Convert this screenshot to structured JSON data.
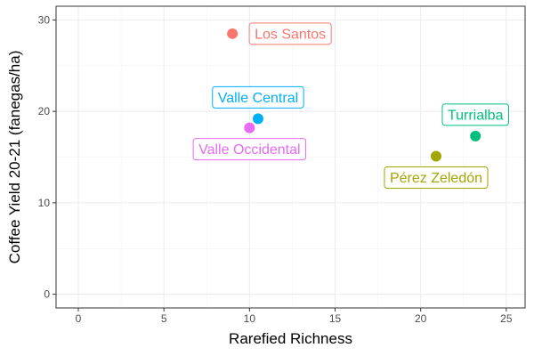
{
  "chart_data": {
    "type": "scatter",
    "xlabel": "Rarefied Richness",
    "ylabel": "Coffee Yield 20-21 (fanegas/ha)",
    "xlim": [
      -1.3,
      26.1
    ],
    "ylim": [
      -1.5,
      31.5
    ],
    "x_ticks": [
      0,
      5,
      10,
      15,
      20,
      25
    ],
    "y_ticks": [
      0,
      10,
      20,
      30
    ],
    "grid": true,
    "legend": "none",
    "points": [
      {
        "label": "Los Santos",
        "x": 9.0,
        "y": 28.5,
        "color": "#F8766D",
        "label_pos": "right"
      },
      {
        "label": "Valle Central",
        "x": 10.5,
        "y": 19.2,
        "color": "#00B0F6",
        "label_pos": "above"
      },
      {
        "label": "Valle Occidental",
        "x": 10.0,
        "y": 18.2,
        "color": "#E76BF3",
        "label_pos": "below"
      },
      {
        "label": "Turrialba",
        "x": 23.2,
        "y": 17.3,
        "color": "#00BF7D",
        "label_pos": "above"
      },
      {
        "label": "Pérez Zeledón",
        "x": 20.9,
        "y": 15.1,
        "color": "#A3A500",
        "label_pos": "below"
      }
    ]
  }
}
